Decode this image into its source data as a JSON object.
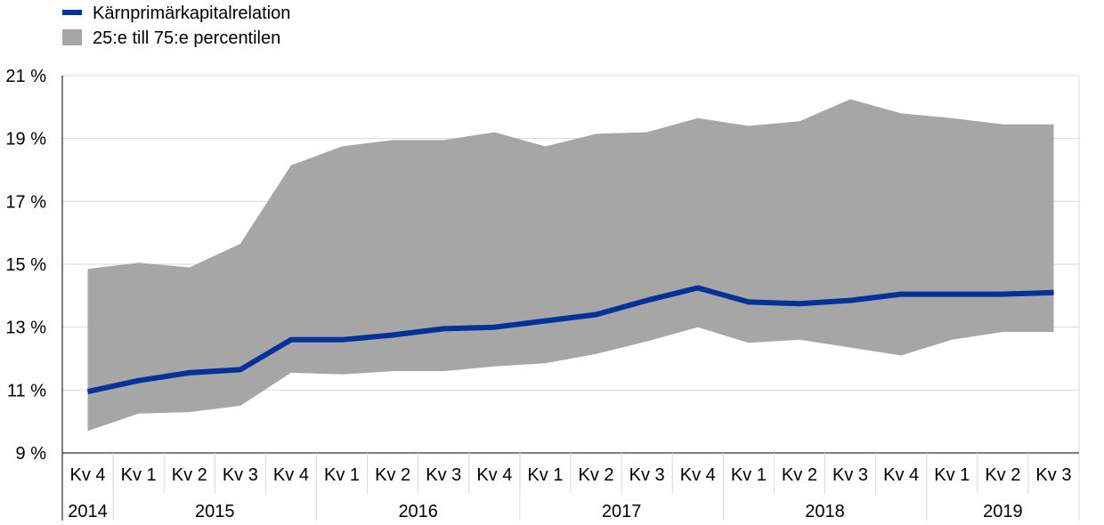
{
  "chart_data": {
    "type": "area",
    "title": "",
    "xlabel": "",
    "ylabel": "",
    "ylim": [
      9,
      21
    ],
    "yticks": [
      9,
      11,
      13,
      15,
      17,
      19,
      21
    ],
    "ytick_labels": [
      "9 %",
      "11 %",
      "13 %",
      "15 %",
      "17 %",
      "19 %",
      "21 %"
    ],
    "grid": true,
    "legend_position": "top-left",
    "categories": [
      "Kv 4",
      "Kv 1",
      "Kv 2",
      "Kv 3",
      "Kv 4",
      "Kv 1",
      "Kv 2",
      "Kv 3",
      "Kv 4",
      "Kv 1",
      "Kv 2",
      "Kv 3",
      "Kv 4",
      "Kv 1",
      "Kv 2",
      "Kv 3",
      "Kv 4",
      "Kv 1",
      "Kv 2",
      "Kv 3"
    ],
    "years": [
      {
        "label": "2014",
        "count": 1
      },
      {
        "label": "2015",
        "count": 4
      },
      {
        "label": "2016",
        "count": 4
      },
      {
        "label": "2017",
        "count": 4
      },
      {
        "label": "2018",
        "count": 4
      },
      {
        "label": "2019",
        "count": 3
      }
    ],
    "series": [
      {
        "name": "Kärnprimärkapitalrelation",
        "type": "line",
        "color": "#003299",
        "values": [
          10.95,
          11.3,
          11.55,
          11.65,
          12.6,
          12.6,
          12.75,
          12.95,
          13.0,
          13.2,
          13.4,
          13.85,
          14.25,
          13.8,
          13.75,
          13.85,
          14.05,
          14.05,
          14.05,
          14.1
        ]
      },
      {
        "name": "25:e till 75:e percentilen",
        "type": "band",
        "color": "#a6a6a6",
        "low": [
          9.7,
          10.25,
          10.3,
          10.5,
          11.55,
          11.5,
          11.6,
          11.6,
          11.75,
          11.85,
          12.15,
          12.55,
          13.0,
          12.5,
          12.6,
          12.35,
          12.1,
          12.6,
          12.85,
          12.85
        ],
        "high": [
          14.85,
          15.05,
          14.9,
          15.65,
          18.15,
          18.75,
          18.95,
          18.95,
          19.2,
          18.75,
          19.15,
          19.2,
          19.65,
          19.4,
          19.55,
          20.25,
          19.8,
          19.65,
          19.45,
          19.45
        ]
      }
    ]
  }
}
